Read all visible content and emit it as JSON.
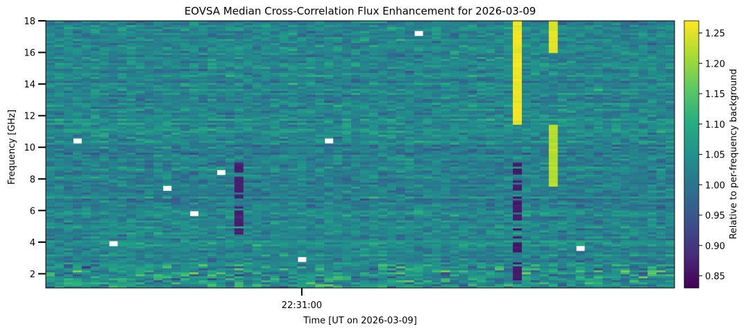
{
  "chart_data": {
    "type": "heatmap",
    "title": "EOVSA Median Cross-Correlation Flux Enhancement for 2026-03-09",
    "xlabel": "Time [UT on 2026-03-09]",
    "ylabel": "Frequency [GHz]",
    "x_tick_labels": [
      "22:31:00"
    ],
    "y_ticks": [
      2,
      4,
      6,
      8,
      10,
      12,
      14,
      16,
      18
    ],
    "ylim": [
      1.1,
      18.0
    ],
    "colorbar": {
      "label": "Relative to per-frequency background",
      "ticks": [
        0.85,
        0.9,
        0.95,
        1.0,
        1.05,
        1.1,
        1.15,
        1.2,
        1.25
      ],
      "range": [
        0.83,
        1.27
      ],
      "colormap": "viridis"
    },
    "n_time_bins": 70,
    "n_freq_bins": 134,
    "enhanced_time_bins": [
      {
        "bin": 52,
        "freq_range_ghz": [
          11.5,
          18.0
        ],
        "value": 1.26
      },
      {
        "bin": 56,
        "freq_range_ghz": [
          16.0,
          18.0
        ],
        "value": 1.25
      },
      {
        "bin": 56,
        "freq_range_ghz": [
          7.5,
          11.5
        ],
        "value": 1.22
      }
    ],
    "depressed_time_bins": [
      {
        "bin": 52,
        "freq_range_ghz": [
          1.5,
          9.0
        ],
        "value": 0.86
      },
      {
        "bin": 21,
        "freq_range_ghz": [
          4.5,
          9.0
        ],
        "value": 0.87
      }
    ],
    "missing_cells": [
      {
        "bin": 3,
        "freq_ghz": 10.4
      },
      {
        "bin": 13,
        "freq_ghz": 7.4
      },
      {
        "bin": 16,
        "freq_ghz": 5.8
      },
      {
        "bin": 19,
        "freq_ghz": 8.4
      },
      {
        "bin": 7,
        "freq_ghz": 3.9
      },
      {
        "bin": 28,
        "freq_ghz": 2.9
      },
      {
        "bin": 31,
        "freq_ghz": 10.4
      },
      {
        "bin": 41,
        "freq_ghz": 17.2
      },
      {
        "bin": 59,
        "freq_ghz": 3.6
      }
    ],
    "grid": false
  }
}
